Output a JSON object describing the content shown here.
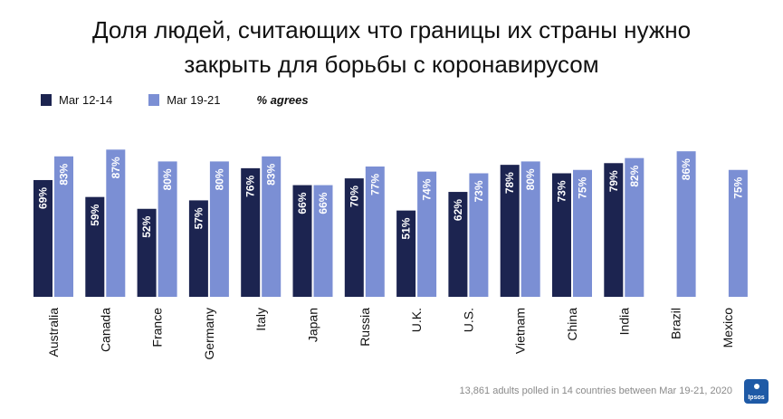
{
  "chart_data": {
    "type": "bar",
    "title_line1": "Доля людей, считающих что границы их страны нужно",
    "title_line2": "закрыть для борьбы с коронавирусом",
    "legend_note": "% agrees",
    "categories": [
      "Australia",
      "Canada",
      "France",
      "Germany",
      "Italy",
      "Japan",
      "Russia",
      "U.K.",
      "U.S.",
      "Vietnam",
      "China",
      "India",
      "Brazil",
      "Mexico"
    ],
    "series": [
      {
        "name": "Mar 12-14",
        "color": "#1c2450",
        "values": [
          69,
          59,
          52,
          57,
          76,
          66,
          70,
          51,
          62,
          78,
          73,
          79,
          null,
          null
        ]
      },
      {
        "name": "Mar 19-21",
        "color": "#7b8fd4",
        "values": [
          83,
          87,
          80,
          80,
          83,
          66,
          77,
          74,
          73,
          80,
          75,
          82,
          86,
          75
        ]
      }
    ],
    "value_suffix": "%",
    "ylim": [
      0,
      100
    ],
    "grid": false,
    "legend_position": "top-left"
  },
  "footer": {
    "note": "13,861 adults polled in 14 countries between Mar 19-21, 2020",
    "logo_text": "Ipsos"
  }
}
